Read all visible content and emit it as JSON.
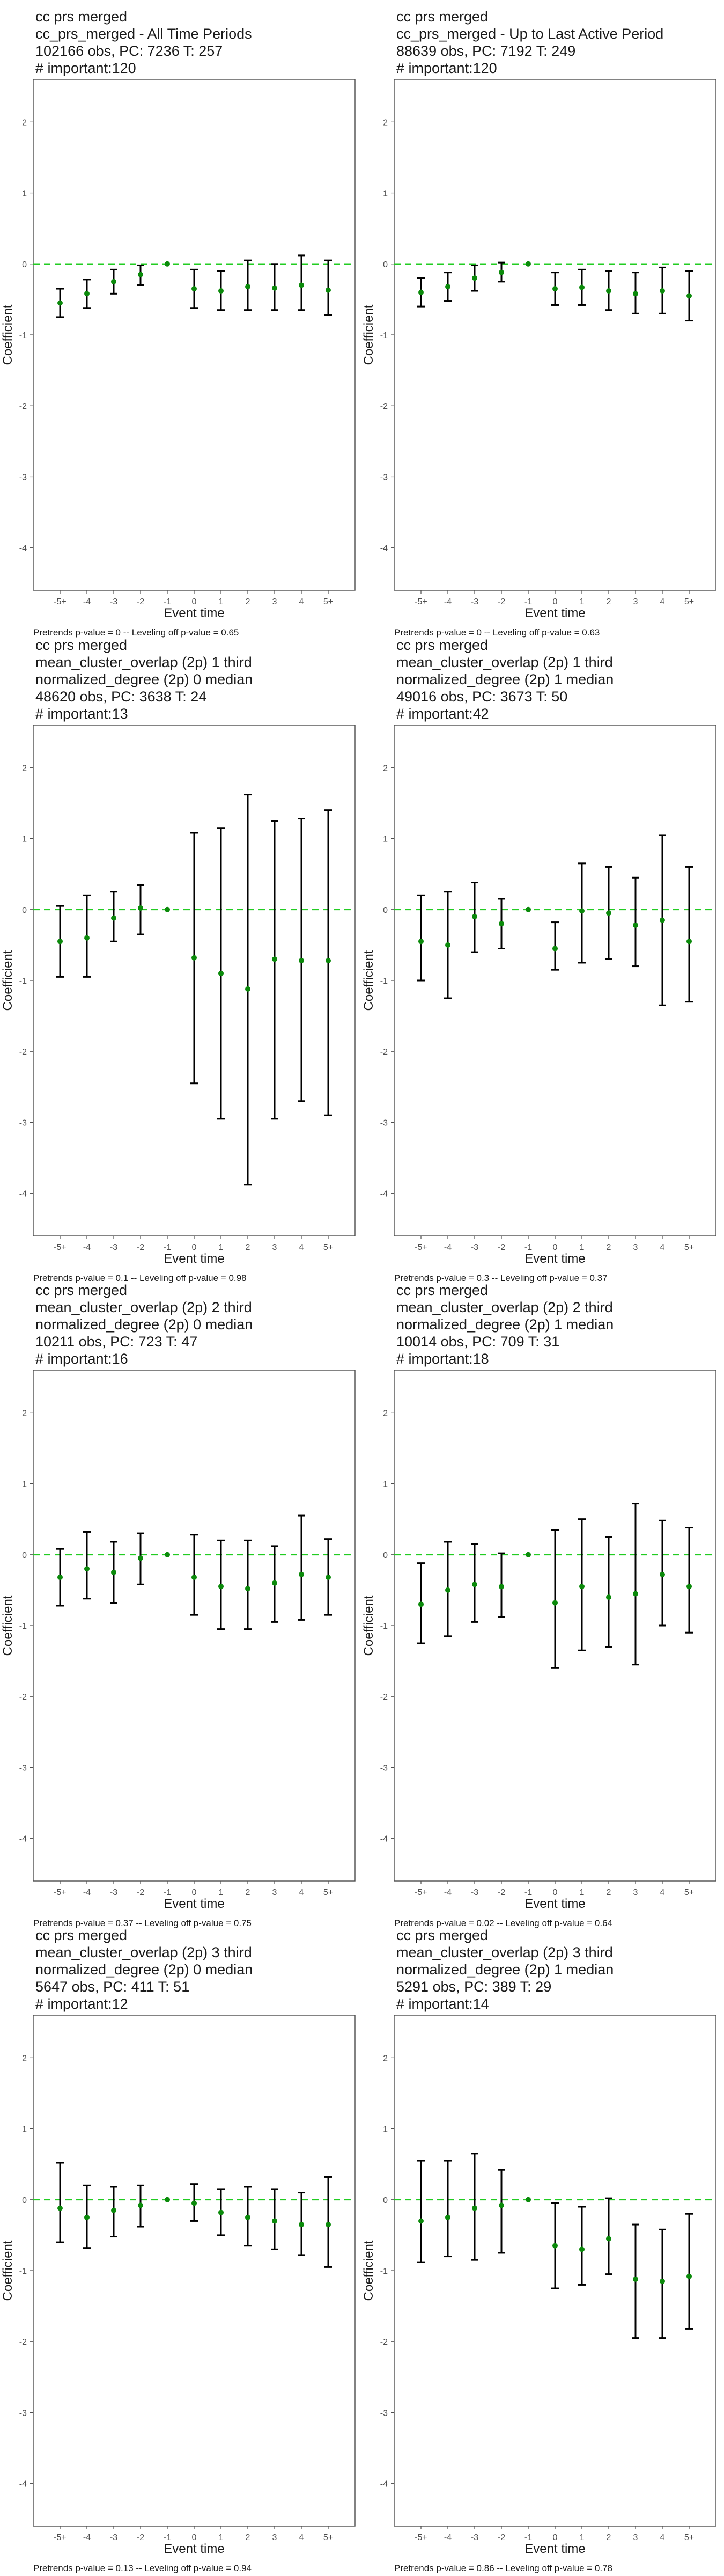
{
  "figure": {
    "x_ticks": [
      "-5+",
      "-4",
      "-3",
      "-2",
      "-1",
      "0",
      "1",
      "2",
      "3",
      "4",
      "5+"
    ],
    "y_ticks": [
      2,
      1,
      0,
      -1,
      -2,
      -3,
      -4
    ],
    "xlabel": "Event time",
    "ylabel": "Coefficient",
    "colors": {
      "point": "#0b8a0b",
      "reference": "#22cc22",
      "errorbar": "#000000",
      "frame": "#4d4d4d"
    }
  },
  "chart_data": [
    {
      "type": "scatter",
      "title_lines": [
        "cc prs merged",
        "cc_prs_merged - All Time Periods",
        "102166 obs, PC: 7236 T: 257",
        "# important:120"
      ],
      "xlabel": "Event time",
      "ylabel": "Coefficient",
      "ylim": [
        -4.6,
        2.6
      ],
      "categories": [
        "-5+",
        "-4",
        "-3",
        "-2",
        "-1",
        "0",
        "1",
        "2",
        "3",
        "4",
        "5+"
      ],
      "values": [
        -0.55,
        -0.42,
        -0.25,
        -0.15,
        0.0,
        -0.35,
        -0.38,
        -0.32,
        -0.34,
        -0.3,
        -0.37
      ],
      "ci": [
        [
          -0.75,
          -0.35
        ],
        [
          -0.62,
          -0.22
        ],
        [
          -0.42,
          -0.08
        ],
        [
          -0.3,
          -0.02
        ],
        [
          0,
          0
        ],
        [
          -0.62,
          -0.08
        ],
        [
          -0.65,
          -0.1
        ],
        [
          -0.65,
          0.05
        ],
        [
          -0.65,
          0.0
        ],
        [
          -0.65,
          0.12
        ],
        [
          -0.72,
          0.05
        ]
      ],
      "footer": "Pretrends p-value = 0 -- Leveling off p-value = 0.65"
    },
    {
      "type": "scatter",
      "title_lines": [
        "cc prs merged",
        "cc_prs_merged - Up to Last Active Period",
        "88639 obs, PC: 7192 T: 249",
        "# important:120"
      ],
      "xlabel": "Event time",
      "ylabel": "Coefficient",
      "ylim": [
        -4.6,
        2.6
      ],
      "categories": [
        "-5+",
        "-4",
        "-3",
        "-2",
        "-1",
        "0",
        "1",
        "2",
        "3",
        "4",
        "5+"
      ],
      "values": [
        -0.4,
        -0.32,
        -0.2,
        -0.12,
        0.0,
        -0.35,
        -0.33,
        -0.38,
        -0.42,
        -0.38,
        -0.45
      ],
      "ci": [
        [
          -0.6,
          -0.2
        ],
        [
          -0.52,
          -0.12
        ],
        [
          -0.38,
          -0.02
        ],
        [
          -0.25,
          0.02
        ],
        [
          0,
          0
        ],
        [
          -0.58,
          -0.12
        ],
        [
          -0.58,
          -0.08
        ],
        [
          -0.65,
          -0.1
        ],
        [
          -0.7,
          -0.12
        ],
        [
          -0.7,
          -0.05
        ],
        [
          -0.8,
          -0.1
        ]
      ],
      "footer": "Pretrends p-value = 0 -- Leveling off p-value = 0.63"
    },
    {
      "type": "scatter",
      "title_lines": [
        "cc prs merged",
        "mean_cluster_overlap (2p) 1 third",
        "normalized_degree (2p) 0 median",
        "48620 obs, PC: 3638 T: 24",
        "# important:13"
      ],
      "xlabel": "Event time",
      "ylabel": "Coefficient",
      "ylim": [
        -4.6,
        2.6
      ],
      "categories": [
        "-5+",
        "-4",
        "-3",
        "-2",
        "-1",
        "0",
        "1",
        "2",
        "3",
        "4",
        "5+"
      ],
      "values": [
        -0.45,
        -0.4,
        -0.12,
        0.02,
        0.0,
        -0.68,
        -0.9,
        -1.12,
        -0.7,
        -0.72,
        -0.72
      ],
      "ci": [
        [
          -0.95,
          0.05
        ],
        [
          -0.95,
          0.2
        ],
        [
          -0.45,
          0.25
        ],
        [
          -0.35,
          0.35
        ],
        [
          0,
          0
        ],
        [
          -2.45,
          1.08
        ],
        [
          -2.95,
          1.15
        ],
        [
          -3.88,
          1.62
        ],
        [
          -2.95,
          1.25
        ],
        [
          -2.7,
          1.28
        ],
        [
          -2.9,
          1.4
        ]
      ],
      "footer": "Pretrends p-value = 0.1 -- Leveling off p-value = 0.98"
    },
    {
      "type": "scatter",
      "title_lines": [
        "cc prs merged",
        "mean_cluster_overlap (2p) 1 third",
        "normalized_degree (2p) 1 median",
        "49016 obs, PC: 3673 T: 50",
        "# important:42"
      ],
      "xlabel": "Event time",
      "ylabel": "Coefficient",
      "ylim": [
        -4.6,
        2.6
      ],
      "categories": [
        "-5+",
        "-4",
        "-3",
        "-2",
        "-1",
        "0",
        "1",
        "2",
        "3",
        "4",
        "5+"
      ],
      "values": [
        -0.45,
        -0.5,
        -0.1,
        -0.2,
        0.0,
        -0.55,
        -0.02,
        -0.05,
        -0.22,
        -0.15,
        -0.45
      ],
      "ci": [
        [
          -1.0,
          0.2
        ],
        [
          -1.25,
          0.25
        ],
        [
          -0.6,
          0.38
        ],
        [
          -0.55,
          0.15
        ],
        [
          0,
          0
        ],
        [
          -0.85,
          -0.18
        ],
        [
          -0.75,
          0.65
        ],
        [
          -0.7,
          0.6
        ],
        [
          -0.8,
          0.45
        ],
        [
          -1.35,
          1.05
        ],
        [
          -1.3,
          0.6
        ]
      ],
      "footer": "Pretrends p-value = 0.3 -- Leveling off p-value = 0.37"
    },
    {
      "type": "scatter",
      "title_lines": [
        "cc prs merged",
        "mean_cluster_overlap (2p) 2 third",
        "normalized_degree (2p) 0 median",
        "10211 obs, PC: 723 T: 47",
        "# important:16"
      ],
      "xlabel": "Event time",
      "ylabel": "Coefficient",
      "ylim": [
        -4.6,
        2.6
      ],
      "categories": [
        "-5+",
        "-4",
        "-3",
        "-2",
        "-1",
        "0",
        "1",
        "2",
        "3",
        "4",
        "5+"
      ],
      "values": [
        -0.32,
        -0.2,
        -0.25,
        -0.05,
        0.0,
        -0.32,
        -0.45,
        -0.48,
        -0.4,
        -0.28,
        -0.32
      ],
      "ci": [
        [
          -0.72,
          0.08
        ],
        [
          -0.62,
          0.32
        ],
        [
          -0.68,
          0.18
        ],
        [
          -0.42,
          0.3
        ],
        [
          0,
          0
        ],
        [
          -0.85,
          0.28
        ],
        [
          -1.05,
          0.2
        ],
        [
          -1.05,
          0.2
        ],
        [
          -0.95,
          0.12
        ],
        [
          -0.92,
          0.55
        ],
        [
          -0.85,
          0.22
        ]
      ],
      "footer": "Pretrends p-value = 0.37 -- Leveling off p-value = 0.75"
    },
    {
      "type": "scatter",
      "title_lines": [
        "cc prs merged",
        "mean_cluster_overlap (2p) 2 third",
        "normalized_degree (2p) 1 median",
        "10014 obs, PC: 709 T: 31",
        "# important:18"
      ],
      "xlabel": "Event time",
      "ylabel": "Coefficient",
      "ylim": [
        -4.6,
        2.6
      ],
      "categories": [
        "-5+",
        "-4",
        "-3",
        "-2",
        "-1",
        "0",
        "1",
        "2",
        "3",
        "4",
        "5+"
      ],
      "values": [
        -0.7,
        -0.5,
        -0.42,
        -0.45,
        0.0,
        -0.68,
        -0.45,
        -0.6,
        -0.55,
        -0.28,
        -0.45
      ],
      "ci": [
        [
          -1.25,
          -0.12
        ],
        [
          -1.15,
          0.18
        ],
        [
          -0.95,
          0.15
        ],
        [
          -0.88,
          0.02
        ],
        [
          0,
          0
        ],
        [
          -1.6,
          0.35
        ],
        [
          -1.35,
          0.5
        ],
        [
          -1.3,
          0.25
        ],
        [
          -1.55,
          0.72
        ],
        [
          -1.0,
          0.48
        ],
        [
          -1.1,
          0.38
        ]
      ],
      "footer": "Pretrends p-value = 0.02 -- Leveling off p-value = 0.64"
    },
    {
      "type": "scatter",
      "title_lines": [
        "cc prs merged",
        "mean_cluster_overlap (2p) 3 third",
        "normalized_degree (2p) 0 median",
        "5647 obs, PC: 411 T: 51",
        "# important:12"
      ],
      "xlabel": "Event time",
      "ylabel": "Coefficient",
      "ylim": [
        -4.6,
        2.6
      ],
      "categories": [
        "-5+",
        "-4",
        "-3",
        "-2",
        "-1",
        "0",
        "1",
        "2",
        "3",
        "4",
        "5+"
      ],
      "values": [
        -0.12,
        -0.25,
        -0.15,
        -0.08,
        0.0,
        -0.05,
        -0.18,
        -0.25,
        -0.3,
        -0.35,
        -0.35
      ],
      "ci": [
        [
          -0.6,
          0.52
        ],
        [
          -0.68,
          0.2
        ],
        [
          -0.52,
          0.18
        ],
        [
          -0.38,
          0.2
        ],
        [
          0,
          0
        ],
        [
          -0.3,
          0.22
        ],
        [
          -0.5,
          0.15
        ],
        [
          -0.65,
          0.18
        ],
        [
          -0.7,
          0.15
        ],
        [
          -0.78,
          0.1
        ],
        [
          -0.95,
          0.32
        ]
      ],
      "footer": "Pretrends p-value = 0.13 -- Leveling off p-value = 0.94"
    },
    {
      "type": "scatter",
      "title_lines": [
        "cc prs merged",
        "mean_cluster_overlap (2p) 3 third",
        "normalized_degree (2p) 1 median",
        "5291 obs, PC: 389 T: 29",
        "# important:14"
      ],
      "xlabel": "Event time",
      "ylabel": "Coefficient",
      "ylim": [
        -4.6,
        2.6
      ],
      "categories": [
        "-5+",
        "-4",
        "-3",
        "-2",
        "-1",
        "0",
        "1",
        "2",
        "3",
        "4",
        "5+"
      ],
      "values": [
        -0.3,
        -0.25,
        -0.12,
        -0.08,
        0.0,
        -0.65,
        -0.7,
        -0.55,
        -1.12,
        -1.15,
        -1.08
      ],
      "ci": [
        [
          -0.88,
          0.55
        ],
        [
          -0.8,
          0.55
        ],
        [
          -0.85,
          0.65
        ],
        [
          -0.75,
          0.42
        ],
        [
          0,
          0
        ],
        [
          -1.25,
          -0.05
        ],
        [
          -1.2,
          -0.1
        ],
        [
          -1.05,
          0.02
        ],
        [
          -1.95,
          -0.35
        ],
        [
          -1.95,
          -0.42
        ],
        [
          -1.82,
          -0.2
        ]
      ],
      "footer": "Pretrends p-value = 0.86 -- Leveling off p-value = 0.78"
    }
  ]
}
